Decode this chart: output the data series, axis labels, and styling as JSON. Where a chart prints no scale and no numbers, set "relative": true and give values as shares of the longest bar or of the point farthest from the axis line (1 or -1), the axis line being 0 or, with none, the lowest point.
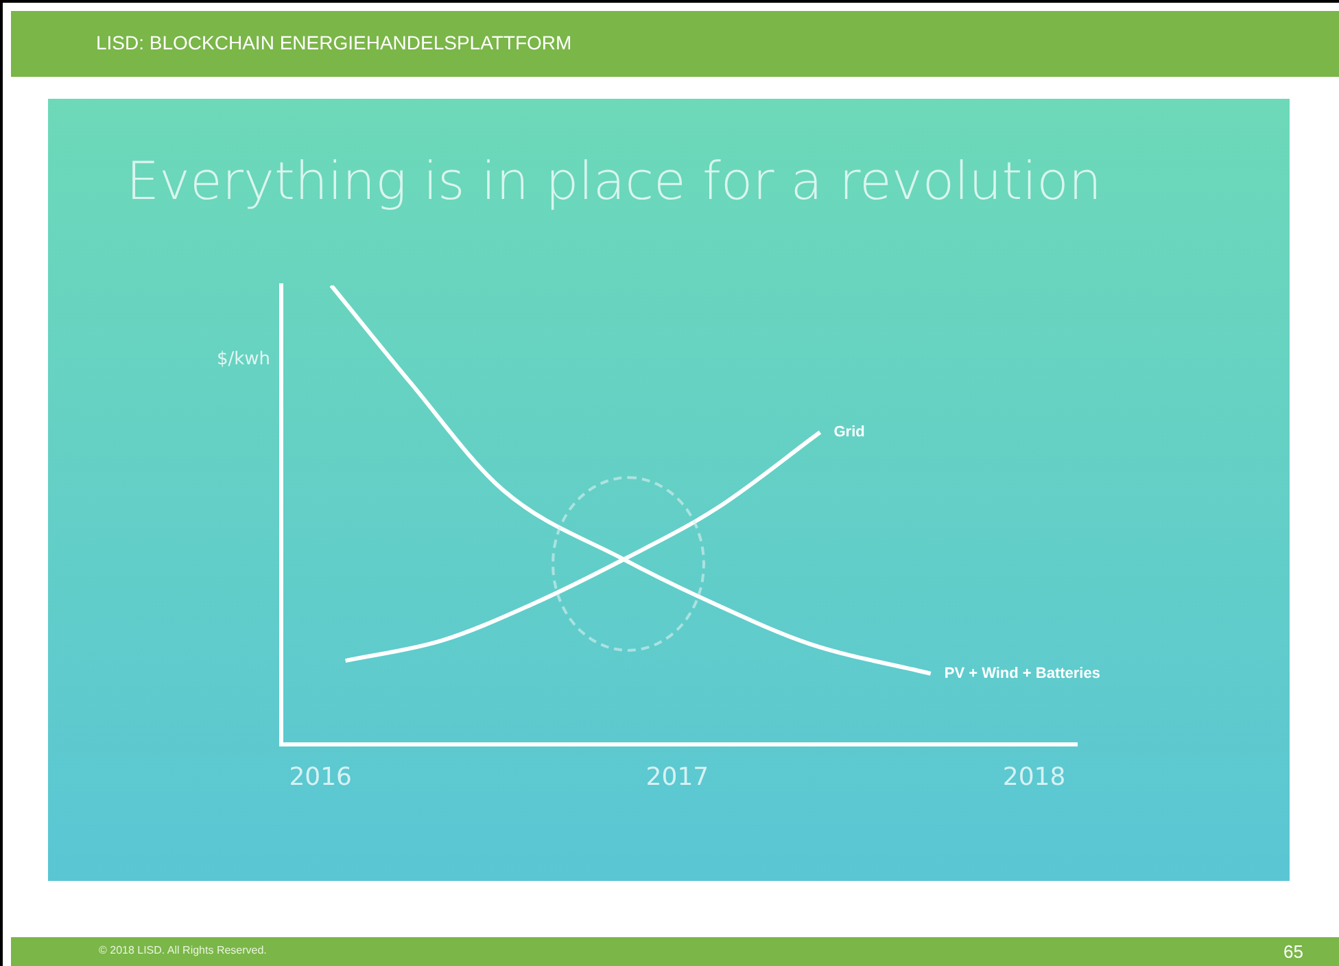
{
  "chart_data": {
    "type": "line",
    "title": "Everything is in place for a revolution",
    "ylabel": "$/kwh",
    "relative": true,
    "marker": "none",
    "xlim": [
      2015.89,
      2018.12
    ],
    "xticks": [
      2016,
      2017,
      2018
    ],
    "series": [
      {
        "name": "Grid",
        "color": "#ffffff",
        "x": [
          2016.07,
          2016.34,
          2016.59,
          2016.85,
          2017.11,
          2017.4
        ],
        "values": [
          0.182,
          0.226,
          0.304,
          0.403,
          0.514,
          0.68
        ]
      },
      {
        "name": "PV + Wind + Batteries",
        "color": "#ffffff",
        "x": [
          2016.03,
          2016.25,
          2016.51,
          2016.85,
          2017.11,
          2017.37,
          2017.71
        ],
        "values": [
          1,
          0.79,
          0.555,
          0.403,
          0.304,
          0.219,
          0.154
        ]
      }
    ],
    "annotations": [
      "LISD: BLOCKCHAIN ENERGIEHANDELSPLATTFORM",
      "© 2018 LISD. All Rights Reserved.",
      "65"
    ]
  }
}
